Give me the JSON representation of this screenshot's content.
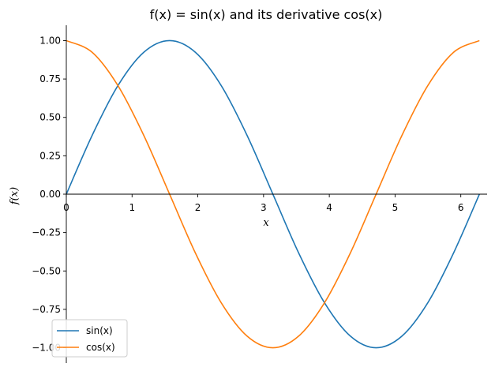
{
  "chart_data": {
    "type": "line",
    "title": "f(x) = sin(x) and its derivative cos(x)",
    "xlabel": "x",
    "ylabel": "f(x)",
    "xlim": [
      0,
      6.4
    ],
    "ylim": [
      -1.1,
      1.1
    ],
    "xticks": [
      0,
      1,
      2,
      3,
      4,
      5,
      6
    ],
    "xtick_labels": [
      "0",
      "1",
      "2",
      "3",
      "4",
      "5",
      "6"
    ],
    "yticks": [
      1.0,
      0.75,
      0.5,
      0.25,
      0.0,
      -0.25,
      -0.5,
      -0.75,
      -1.0
    ],
    "ytick_labels": [
      "1.00",
      "0.75",
      "0.50",
      "0.25",
      "0.00",
      "−0.25",
      "−0.50",
      "−0.75",
      "−1.00"
    ],
    "grid": false,
    "legend_position": "lower-left",
    "x": [
      0,
      0.393,
      0.785,
      1.178,
      1.571,
      1.963,
      2.356,
      2.749,
      3.142,
      3.534,
      3.927,
      4.32,
      4.712,
      5.105,
      5.498,
      5.89,
      6.283
    ],
    "series": [
      {
        "name": "sin(x)",
        "color": "#1f77b4",
        "values": [
          0,
          0.383,
          0.707,
          0.924,
          1.0,
          0.924,
          0.707,
          0.383,
          0,
          -0.383,
          -0.707,
          -0.924,
          -1.0,
          -0.924,
          -0.707,
          -0.383,
          0
        ]
      },
      {
        "name": "cos(x)",
        "color": "#ff7f0e",
        "values": [
          1.0,
          0.924,
          0.707,
          0.383,
          0,
          -0.383,
          -0.707,
          -0.924,
          -1.0,
          -0.924,
          -0.707,
          -0.383,
          0,
          0.383,
          0.707,
          0.924,
          1.0
        ]
      }
    ]
  }
}
